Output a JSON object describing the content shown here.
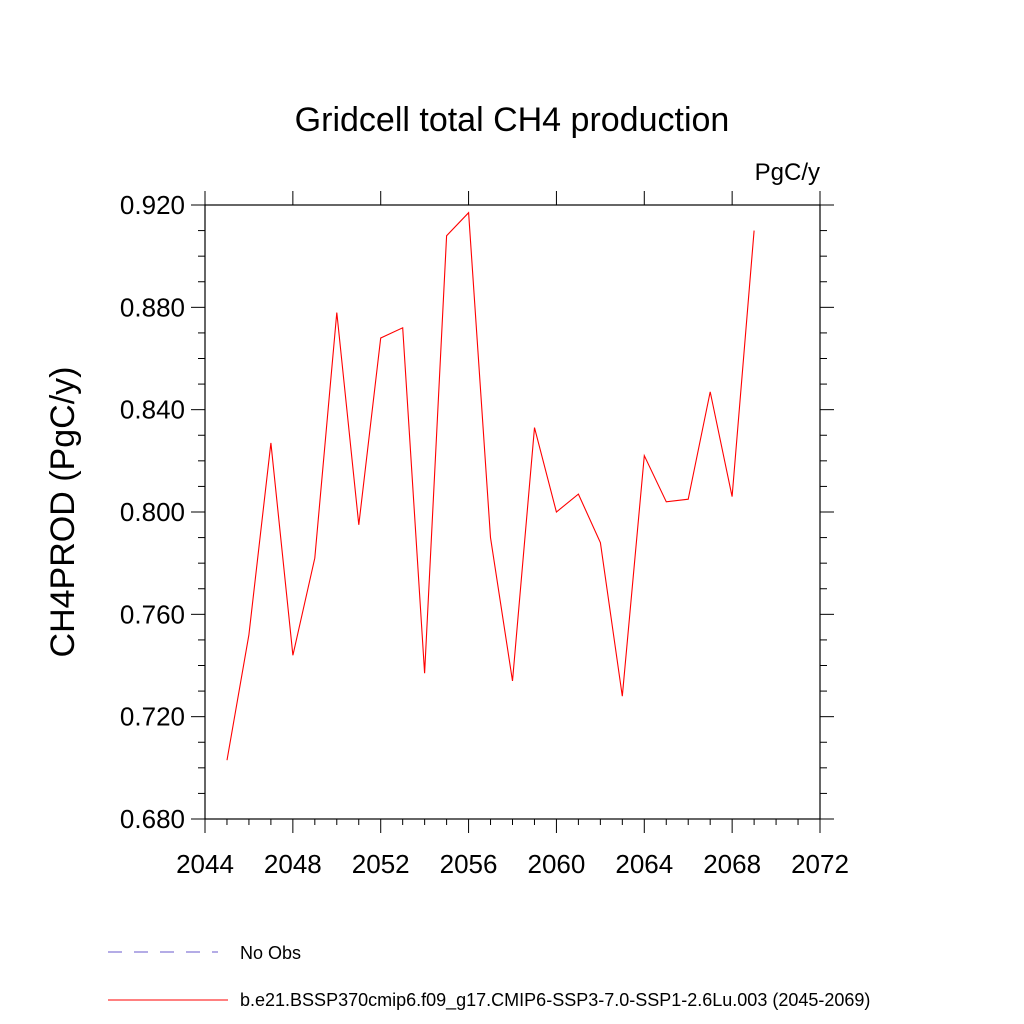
{
  "chart_data": {
    "type": "line",
    "title": "Gridcell total CH4 production",
    "units_label": "PgC/y",
    "xlabel": "",
    "ylabel": "CH4PROD  (PgC/y)",
    "xlim": [
      2044,
      2072
    ],
    "ylim": [
      0.68,
      0.92
    ],
    "x_ticks": [
      2044,
      2048,
      2052,
      2056,
      2060,
      2064,
      2068,
      2072
    ],
    "y_ticks": [
      0.68,
      0.72,
      0.76,
      0.8,
      0.84,
      0.88,
      0.92
    ],
    "x_tick_labels": [
      "2044",
      "2048",
      "2052",
      "2056",
      "2060",
      "2064",
      "2068",
      "2072"
    ],
    "y_tick_labels": [
      "0.680",
      "0.720",
      "0.760",
      "0.800",
      "0.840",
      "0.880",
      "0.920"
    ],
    "series": [
      {
        "name": "b.e21.BSSP370cmip6.f09_g17.CMIP6-SSP3-7.0-SSP1-2.6Lu.003 (2045-2069)",
        "color": "#ff0000",
        "x": [
          2045,
          2046,
          2047,
          2048,
          2049,
          2050,
          2051,
          2052,
          2053,
          2054,
          2055,
          2056,
          2057,
          2058,
          2059,
          2060,
          2061,
          2062,
          2063,
          2064,
          2065,
          2066,
          2067,
          2068,
          2069
        ],
        "values": [
          0.703,
          0.752,
          0.827,
          0.744,
          0.782,
          0.878,
          0.795,
          0.868,
          0.872,
          0.737,
          0.908,
          0.917,
          0.79,
          0.734,
          0.833,
          0.8,
          0.807,
          0.788,
          0.728,
          0.822,
          0.804,
          0.805,
          0.847,
          0.806,
          0.91
        ]
      }
    ],
    "legend": [
      {
        "label": "No Obs",
        "color": "#6a5acd",
        "style": "dashed"
      },
      {
        "label": "b.e21.BSSP370cmip6.f09_g17.CMIP6-SSP3-7.0-SSP1-2.6Lu.003 (2045-2069)",
        "color": "#ff0000",
        "style": "solid"
      }
    ],
    "legend_position": "bottom-left"
  }
}
